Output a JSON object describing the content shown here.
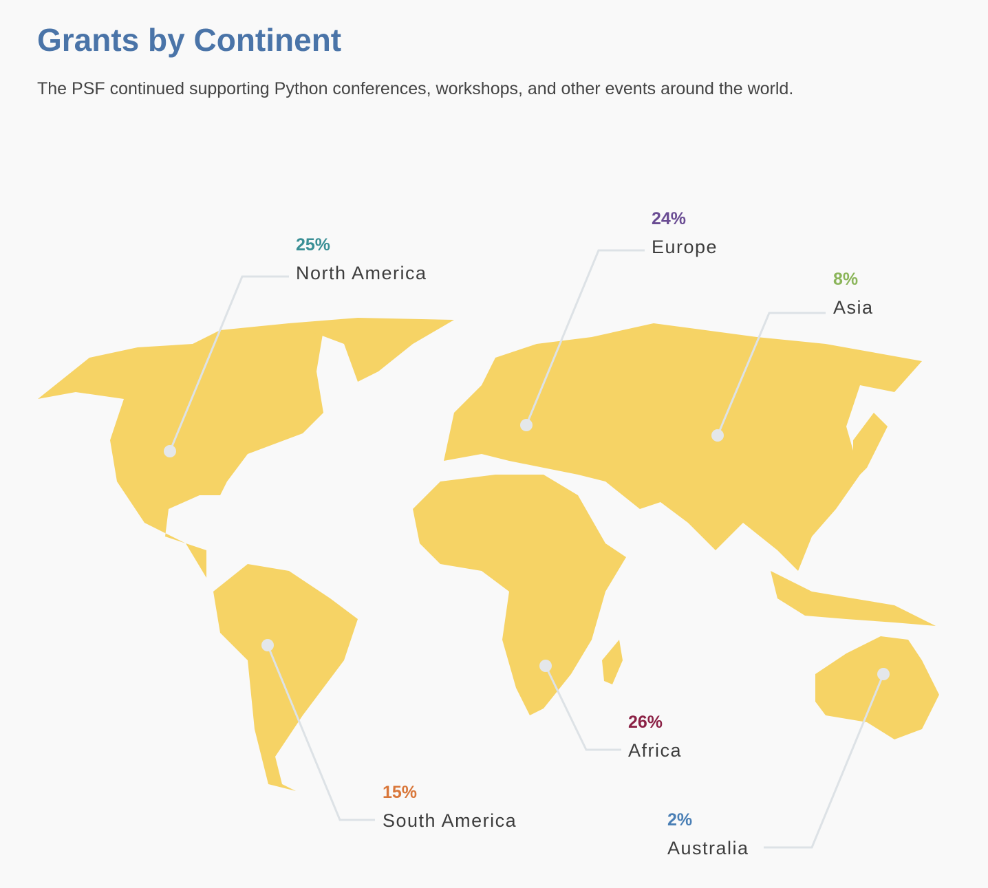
{
  "title": "Grants by Continent",
  "subtitle": "The PSF continued supporting Python conferences, workshops, and other events around the world.",
  "continents": [
    {
      "name": "North America",
      "label": "25%",
      "color": "#3a8f95"
    },
    {
      "name": "Europe",
      "label": "24%",
      "color": "#6a4c93"
    },
    {
      "name": "Asia",
      "label": "8%",
      "color": "#8bb55a"
    },
    {
      "name": "South America",
      "label": "15%",
      "color": "#d9773a"
    },
    {
      "name": "Africa",
      "label": "26%",
      "color": "#8b2145"
    },
    {
      "name": "Australia",
      "label": "2%",
      "color": "#4a7fb5"
    }
  ]
}
